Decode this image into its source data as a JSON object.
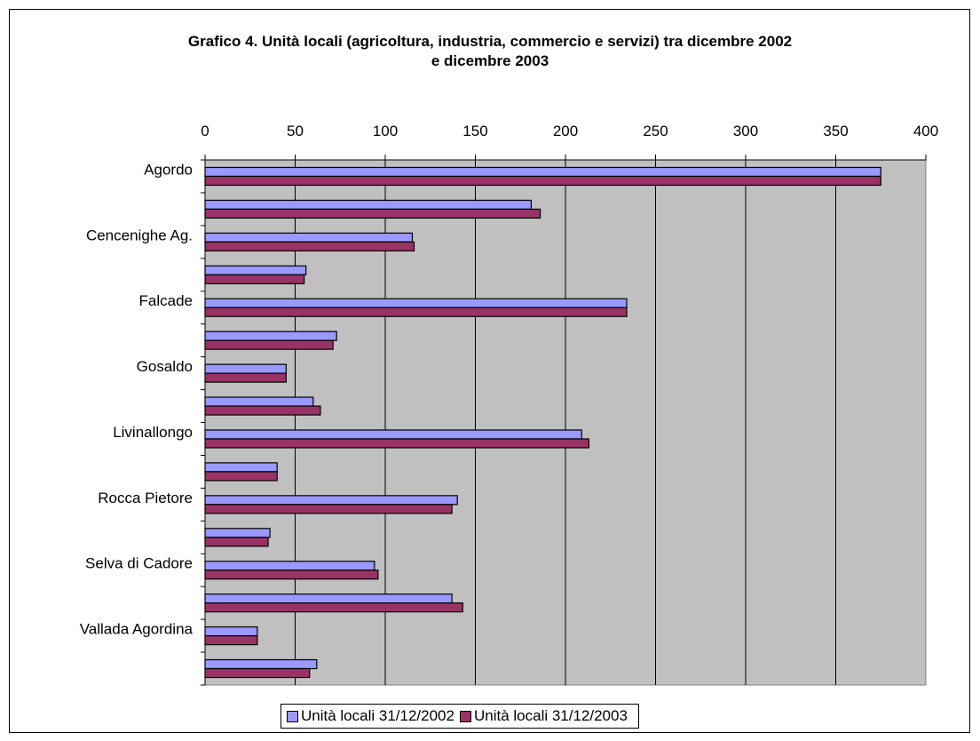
{
  "chart_data": {
    "type": "bar",
    "orientation": "horizontal",
    "title_line1": "Grafico 4. Unità locali (agricoltura, industria, commercio e servizi) tra dicembre 2002",
    "title_line2": "e dicembre 2003",
    "categories": [
      "Agordo",
      "",
      "Cencenighe Ag.",
      "",
      "Falcade",
      "",
      "Gosaldo",
      "",
      "Livinallongo",
      "",
      "Rocca Pietore",
      "",
      "Selva di Cadore",
      "",
      "Vallada Agordina",
      ""
    ],
    "series": [
      {
        "name": "Unità locali 31/12/2002",
        "color": "#9999ff",
        "values": [
          375,
          181,
          115,
          56,
          234,
          73,
          45,
          60,
          209,
          40,
          140,
          36,
          94,
          137,
          29,
          62
        ]
      },
      {
        "name": "Unità locali 31/12/2003",
        "color": "#993366",
        "values": [
          375,
          186,
          116,
          55,
          234,
          71,
          45,
          64,
          213,
          40,
          137,
          35,
          96,
          143,
          29,
          58
        ]
      }
    ],
    "xlim": [
      0,
      400
    ],
    "xticks": [
      "0",
      "50",
      "100",
      "150",
      "200",
      "250",
      "300",
      "350",
      "400"
    ],
    "xaxis_position": "top",
    "grid": true,
    "plot_background": "#c0c0c0",
    "legend_position": "bottom"
  }
}
